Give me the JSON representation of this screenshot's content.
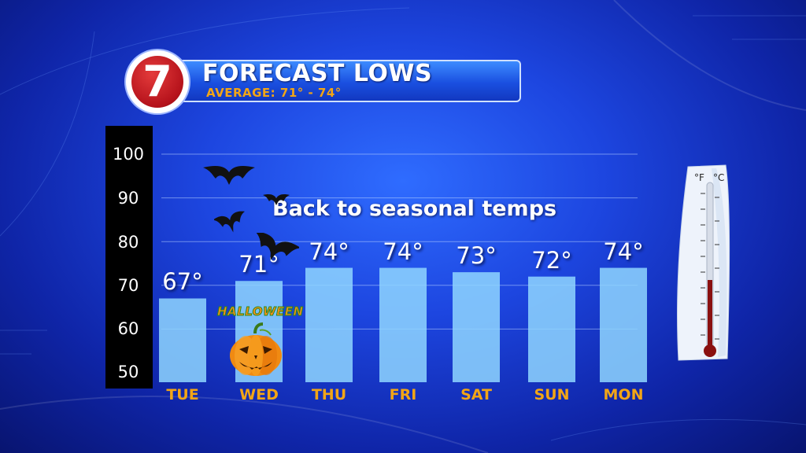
{
  "header": {
    "logo_text": "7",
    "title": "FORECAST LOWS",
    "subtitle": "AVERAGE: 71° -  74°"
  },
  "annotation": "Back to seasonal temps",
  "halloween_label": "HALLOWEEN",
  "icons": [
    "bat-icon",
    "pumpkin-icon",
    "thermometer-icon"
  ],
  "colors": {
    "bar": "#8fd6ff",
    "day_label": "#f2a516",
    "background": "#1d46e0"
  },
  "chart_data": {
    "type": "bar",
    "categories": [
      "TUE",
      "WED",
      "THU",
      "FRI",
      "SAT",
      "SUN",
      "MON"
    ],
    "values": [
      67,
      71,
      74,
      74,
      73,
      72,
      74
    ],
    "value_labels": [
      "67°",
      "71°",
      "74°",
      "74°",
      "73°",
      "72°",
      "74°"
    ],
    "ylim": [
      50,
      100
    ],
    "yticks": [
      "50",
      "60",
      "70",
      "80",
      "90",
      "100"
    ],
    "grid": true
  },
  "thermometer": {
    "unit_left": "°F",
    "unit_right": "°C"
  }
}
